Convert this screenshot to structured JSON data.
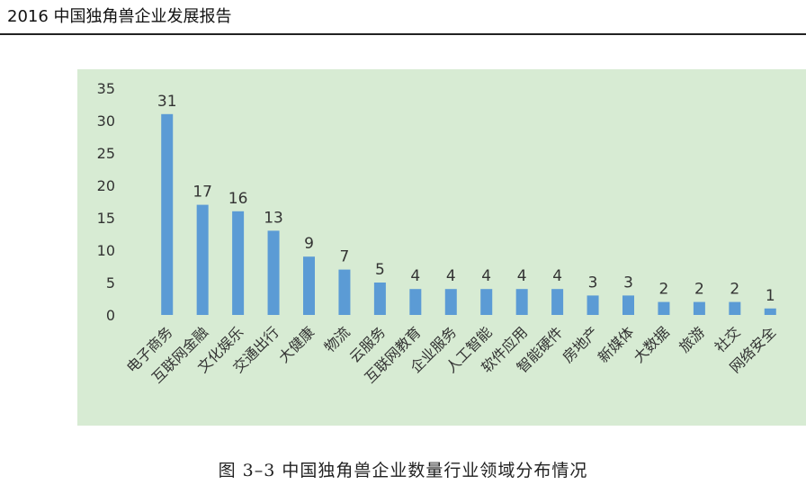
{
  "header": {
    "title": "2016 中国独角兽企业发展报告"
  },
  "caption": "图 3–3 中国独角兽企业数量行业领域分布情况",
  "colors": {
    "plot_background": "#d7ebd3",
    "bar": "#5b9bd5",
    "text": "#333333"
  },
  "chart_data": {
    "type": "bar",
    "title": "",
    "xlabel": "",
    "ylabel": "",
    "ylim": [
      0,
      35
    ],
    "yticks": [
      0,
      5,
      10,
      15,
      20,
      25,
      30,
      35
    ],
    "grid": false,
    "legend": "none",
    "categories": [
      "电子商务",
      "互联网金融",
      "文化娱乐",
      "交通出行",
      "大健康",
      "物流",
      "云服务",
      "互联网教育",
      "企业服务",
      "人工智能",
      "软件应用",
      "智能硬件",
      "房地产",
      "新媒体",
      "大数据",
      "旅游",
      "社交",
      "网络安全"
    ],
    "values": [
      31,
      17,
      16,
      13,
      9,
      7,
      5,
      4,
      4,
      4,
      4,
      4,
      3,
      3,
      2,
      2,
      2,
      1
    ]
  }
}
